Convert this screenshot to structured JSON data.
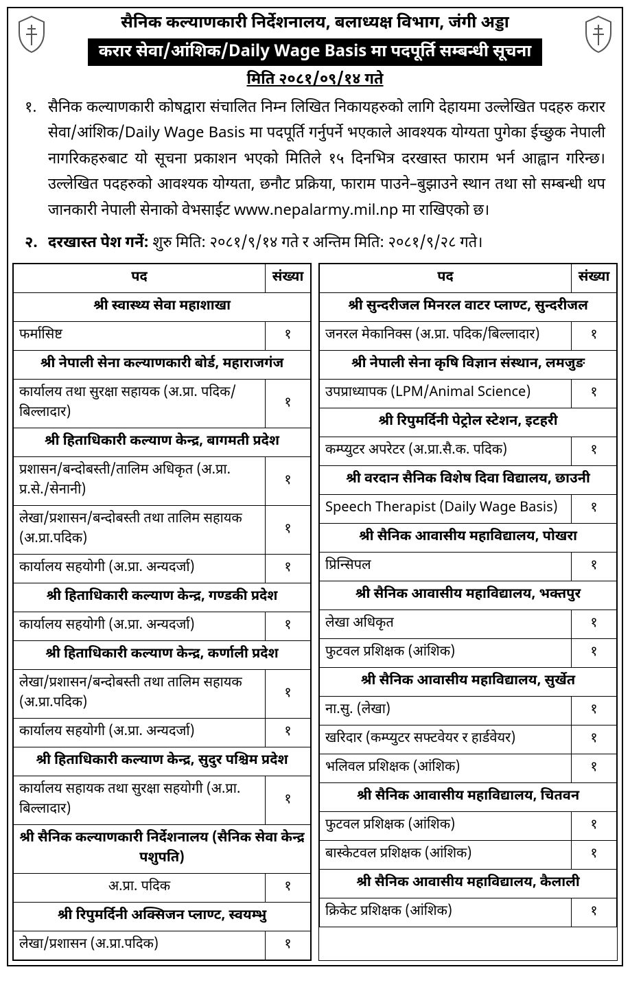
{
  "header": {
    "org_line": "सैनिक कल्याणकारी निर्देशनालय, बलाध्यक्ष विभाग, जंगी अड्डा",
    "banner": "करार सेवा/आंशिक/Daily Wage Basis मा पदपूर्ति सम्बन्धी सूचना",
    "date_line": "मिति २०८१/०९/१४ गते"
  },
  "paragraphs": {
    "p1_num": "१.",
    "p1_text": "सैनिक कल्याणकारी कोषद्वारा संचालित निम्न लिखित निकायहरुको लागि देहायमा उल्लेखित पदहरु करार सेवा/आंशिक/Daily Wage Basis मा पदपूर्ति गर्नुपर्ने भएकाले आवश्यक योग्यता पुगेका ईच्छुक नेपाली नागरिकहरुबाट यो सूचना प्रकाशन भएको मितिले १५ दिनभित्र दरखास्त फाराम भर्न आह्वान गरिन्छ। उल्लेखित पदहरुको आवश्यक योग्यता, छनौट प्रक्रिया, फाराम पाउने–बुझाउने स्थान तथा सो सम्बन्धी थप जानकारी नेपाली सेनाको वेभसाईट www.nepalarmy.mil.np मा राखिएको छ।",
    "p2_num": "२.",
    "p2_label": "दरखास्त पेश गर्ने:",
    "p2_rest": " शुरु मिति: २०८१/९/१४ गते र अन्तिम मिति: २०८१/९/२८ गते।"
  },
  "table_headers": {
    "position": "पद",
    "count": "संख्या"
  },
  "left": [
    {
      "type": "section",
      "label": "श्री स्वास्थ्य सेवा महाशाखा"
    },
    {
      "type": "row",
      "pos": "फर्मासिष्ट",
      "count": "१"
    },
    {
      "type": "section",
      "label": "श्री नेपाली सेना कल्याणकारी बोर्ड, महाराजगंज"
    },
    {
      "type": "row",
      "pos": "कार्यालय तथा सुरक्षा सहायक (अ.प्रा. पदिक/बिल्लादार)",
      "count": "१"
    },
    {
      "type": "section",
      "label": "श्री हिताधिकारी कल्याण केन्द्र, बागमती प्रदेश"
    },
    {
      "type": "row",
      "pos": "प्रशासन/बन्दोबस्ती/तालिम अधिकृत (अ.प्रा. प्र.से./सेनानी)",
      "count": "१"
    },
    {
      "type": "row",
      "pos": "लेखा/प्रशासन/बन्दोबस्ती तथा तालिम सहायक (अ.प्रा.पदिक)",
      "count": "१"
    },
    {
      "type": "row",
      "pos": "कार्यालय सहयोगी (अ.प्रा. अन्यदर्जा)",
      "count": "१"
    },
    {
      "type": "section",
      "label": "श्री हिताधिकारी कल्याण केन्द्र, गण्डकी प्रदेश"
    },
    {
      "type": "row",
      "pos": "कार्यालय सहयोगी (अ.प्रा. अन्यदर्जा)",
      "count": "१"
    },
    {
      "type": "section",
      "label": "श्री हिताधिकारी कल्याण केन्द्र, कर्णाली प्रदेश"
    },
    {
      "type": "row",
      "pos": "लेखा/प्रशासन/बन्दोबस्ती तथा तालिम सहायक (अ.प्रा.पदिक)",
      "count": "१"
    },
    {
      "type": "row",
      "pos": "कार्यालय सहयोगी (अ.प्रा. अन्यदर्जा)",
      "count": "१"
    },
    {
      "type": "section",
      "label": "श्री हिताधिकारी कल्याण केन्द्र, सुदुर पश्चिम प्रदेश"
    },
    {
      "type": "row",
      "pos": "कार्यालय सहायक तथा सुरक्षा सहयोगी (अ.प्रा. बिल्लादार)",
      "count": "१"
    },
    {
      "type": "section",
      "label": "श्री सैनिक कल्याणकारी निर्देशनालय (सैनिक सेवा केन्द्र पशुपति)"
    },
    {
      "type": "row",
      "pos": "अ.प्रा. पदिक",
      "count": "१",
      "center": true
    },
    {
      "type": "section",
      "label": "श्री रिपुमर्दिनी अक्सिजन प्लाण्ट, स्वयम्भु"
    },
    {
      "type": "row",
      "pos": "लेखा/प्रशासन (अ.प्रा.पदिक)",
      "count": "१"
    }
  ],
  "right": [
    {
      "type": "section",
      "label": "श्री सुन्दरीजल मिनरल वाटर प्लाण्ट, सुन्दरीजल"
    },
    {
      "type": "row",
      "pos": "जनरल मेकानिक्स (अ.प्रा. पदिक/बिल्लादार)",
      "count": "१"
    },
    {
      "type": "section",
      "label": "श्री नेपाली सेना कृषि विज्ञान संस्थान, लमजुङ"
    },
    {
      "type": "row",
      "pos": "उपप्राध्यापक (LPM/Animal Science)",
      "count": "१"
    },
    {
      "type": "section",
      "label": "श्री रिपुमर्दिनी पेट्रोल स्टेशन, इटहरी"
    },
    {
      "type": "row",
      "pos": "कम्प्युटर अपरेटर (अ.प्रा.सै.क. पदिक)",
      "count": "१"
    },
    {
      "type": "section",
      "label": "श्री वरदान सैनिक विशेष दिवा विद्यालय, छाउनी"
    },
    {
      "type": "row",
      "pos": "Speech Therapist (Daily Wage Basis)",
      "count": "१"
    },
    {
      "type": "section",
      "label": "श्री सैनिक आवासीय महाविद्यालय, पोखरा"
    },
    {
      "type": "row",
      "pos": "प्रिन्सिपल",
      "count": "१"
    },
    {
      "type": "section",
      "label": "श्री सैनिक आवासीय महाविद्यालय, भक्तपुर"
    },
    {
      "type": "row",
      "pos": "लेखा अधिकृत",
      "count": "१"
    },
    {
      "type": "row",
      "pos": "फुटवल प्रशिक्षक (आंशिक)",
      "count": "१"
    },
    {
      "type": "section",
      "label": "श्री सैनिक आवासीय महाविद्यालय, सुर्खेत"
    },
    {
      "type": "row",
      "pos": "ना.सु. (लेखा)",
      "count": "१"
    },
    {
      "type": "row",
      "pos": "खरिदार (कम्प्युटर सफ्टवेयर र हार्डवेयर)",
      "count": "१"
    },
    {
      "type": "row",
      "pos": "भलिवल प्रशिक्षक (आंशिक)",
      "count": "१"
    },
    {
      "type": "section",
      "label": "श्री सैनिक आवासीय महाविद्यालय, चितवन"
    },
    {
      "type": "row",
      "pos": "फुटवल प्रशिक्षक (आंशिक)",
      "count": "१"
    },
    {
      "type": "row",
      "pos": "बास्केटवल प्रशिक्षक (आंशिक)",
      "count": "१"
    },
    {
      "type": "section",
      "label": "श्री सैनिक आवासीय महाविद्यालय, कैलाली"
    },
    {
      "type": "row",
      "pos": "क्रिकेट प्रशिक्षक (आंशिक)",
      "count": "१"
    }
  ]
}
